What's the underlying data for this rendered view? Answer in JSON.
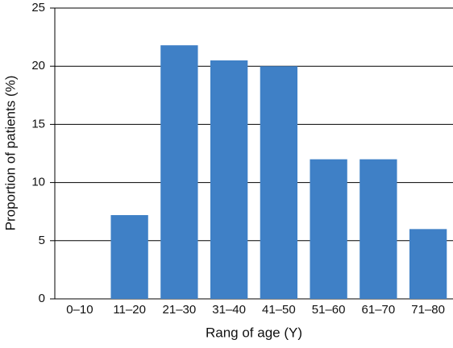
{
  "chart_data": {
    "type": "bar",
    "xlabel": "Rang of age (Y)",
    "ylabel": "Proportion of patients (%)",
    "categories": [
      "0–10",
      "11–20",
      "21–30",
      "31–40",
      "41–50",
      "51–60",
      "61–70",
      "71–80"
    ],
    "values": [
      0,
      7.2,
      21.8,
      20.5,
      20.0,
      12,
      12,
      6
    ],
    "color": "#3f80c6",
    "ylim": [
      0,
      25
    ],
    "yticks": [
      0,
      5,
      10,
      15,
      20,
      25
    ],
    "grid": true
  }
}
